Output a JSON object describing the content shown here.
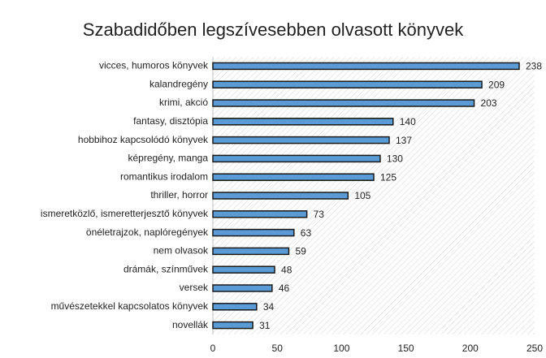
{
  "chart_data": {
    "type": "bar",
    "orientation": "horizontal",
    "title": "Szabadidőben legszívesebben olvasott könyvek",
    "categories": [
      "vicces, humoros könyvek",
      "kalandregény",
      "krimi, akció",
      "fantasy, disztópia",
      "hobbihoz kapcsolódó könyvek",
      "képregény, manga",
      "romantikus irodalom",
      "thriller, horror",
      "ismeretközlő, ismeretterjesztő könyvek",
      "önéletrajzok, naplóregények",
      "nem olvasok",
      "drámák, színművek",
      "versek",
      "művészetekkel kapcsolatos könyvek",
      "novellák"
    ],
    "values": [
      238,
      209,
      203,
      140,
      137,
      130,
      125,
      105,
      73,
      63,
      59,
      48,
      46,
      34,
      31
    ],
    "color": "#5b9bd5",
    "xlim": [
      0,
      250
    ],
    "xticks": [
      0,
      50,
      100,
      150,
      200,
      250
    ]
  }
}
